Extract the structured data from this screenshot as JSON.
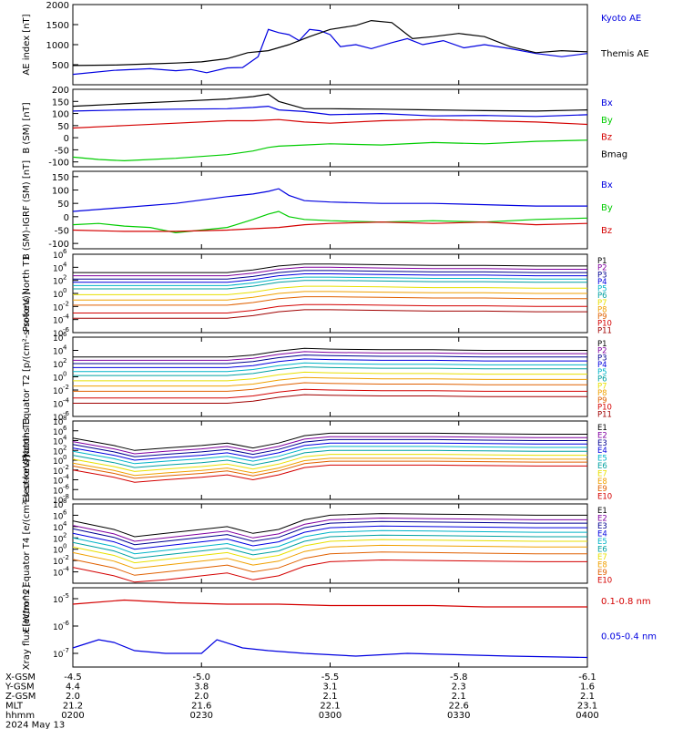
{
  "colors": {
    "black": "#000000",
    "blue": "#0000e0",
    "green": "#00cc00",
    "red": "#d40000",
    "navy": "#000090",
    "purple": "#8000a0",
    "cyan": "#00b4c8",
    "teal": "#00a0a0",
    "ltgreen": "#00d070",
    "yellow": "#e8e000",
    "orange": "#f0a000",
    "darkorange": "#e06000",
    "darkred": "#a00000"
  },
  "chart_data": [
    {
      "type": "line",
      "panel": "ae",
      "ylabel": "AE index [nT]",
      "yticks": [
        "500",
        "1000",
        "1500",
        "2000"
      ],
      "ylim": [
        0,
        2000
      ],
      "series": [
        {
          "name": "Kyoto AE",
          "color": "blue",
          "x": [
            0,
            8,
            15,
            20,
            23,
            26,
            30,
            33,
            36,
            38,
            40,
            42,
            44,
            46,
            48,
            50,
            52,
            55,
            58,
            62,
            65,
            68,
            72,
            76,
            80,
            85,
            90,
            95,
            100
          ],
          "y": [
            260,
            360,
            400,
            350,
            380,
            300,
            420,
            430,
            700,
            1380,
            1300,
            1250,
            1100,
            1380,
            1350,
            1250,
            950,
            1000,
            900,
            1050,
            1150,
            1000,
            1100,
            920,
            1000,
            900,
            780,
            700,
            780
          ]
        },
        {
          "name": "Themis AE",
          "color": "black",
          "x": [
            0,
            8,
            15,
            20,
            25,
            30,
            34,
            38,
            42,
            46,
            50,
            55,
            58,
            62,
            66,
            70,
            75,
            80,
            85,
            90,
            95,
            100
          ],
          "y": [
            480,
            490,
            520,
            540,
            570,
            650,
            800,
            850,
            1000,
            1200,
            1380,
            1480,
            1600,
            1550,
            1150,
            1200,
            1280,
            1200,
            950,
            800,
            850,
            820
          ]
        }
      ]
    },
    {
      "type": "line",
      "panel": "bsm",
      "ylabel": "B (SM) [nT]",
      "yticks": [
        "-100",
        "-50",
        "0",
        "50",
        "100",
        "150",
        "200"
      ],
      "ylim": [
        -120,
        200
      ],
      "series": [
        {
          "name": "Bx",
          "color": "blue",
          "x": [
            0,
            10,
            20,
            30,
            35,
            38,
            40,
            45,
            50,
            60,
            70,
            80,
            90,
            100
          ],
          "y": [
            110,
            115,
            118,
            120,
            125,
            130,
            115,
            108,
            95,
            100,
            90,
            92,
            88,
            95
          ]
        },
        {
          "name": "By",
          "color": "green",
          "x": [
            0,
            5,
            10,
            20,
            30,
            35,
            38,
            40,
            45,
            50,
            60,
            70,
            80,
            90,
            100
          ],
          "y": [
            -80,
            -90,
            -95,
            -85,
            -70,
            -55,
            -40,
            -35,
            -30,
            -25,
            -30,
            -20,
            -25,
            -15,
            -10
          ]
        },
        {
          "name": "Bz",
          "color": "red",
          "x": [
            0,
            10,
            20,
            30,
            35,
            40,
            45,
            50,
            60,
            70,
            80,
            90,
            100
          ],
          "y": [
            40,
            50,
            60,
            70,
            70,
            75,
            65,
            60,
            70,
            75,
            70,
            65,
            55
          ]
        },
        {
          "name": "Bmag",
          "color": "black",
          "x": [
            0,
            10,
            20,
            30,
            35,
            38,
            40,
            45,
            50,
            60,
            70,
            80,
            90,
            100
          ],
          "y": [
            130,
            140,
            150,
            160,
            170,
            180,
            150,
            120,
            120,
            118,
            115,
            112,
            110,
            115
          ]
        }
      ]
    },
    {
      "type": "line",
      "panel": "bigrf",
      "ylabel": "B (SM)-IGRF (SM) [nT]",
      "yticks": [
        "-100",
        "-50",
        "0",
        "50",
        "100",
        "150"
      ],
      "ylim": [
        -120,
        170
      ],
      "series": [
        {
          "name": "Bx",
          "color": "blue",
          "x": [
            0,
            10,
            20,
            30,
            35,
            38,
            40,
            42,
            45,
            50,
            60,
            70,
            80,
            90,
            100
          ],
          "y": [
            20,
            35,
            50,
            75,
            85,
            95,
            105,
            80,
            60,
            55,
            50,
            50,
            45,
            40,
            40
          ]
        },
        {
          "name": "By",
          "color": "green",
          "x": [
            0,
            5,
            10,
            15,
            20,
            25,
            30,
            35,
            38,
            40,
            42,
            45,
            50,
            60,
            70,
            80,
            90,
            100
          ],
          "y": [
            -30,
            -25,
            -35,
            -40,
            -60,
            -50,
            -40,
            -10,
            10,
            20,
            0,
            -10,
            -15,
            -20,
            -15,
            -20,
            -10,
            -5
          ]
        },
        {
          "name": "Bz",
          "color": "red",
          "x": [
            0,
            10,
            20,
            30,
            35,
            40,
            45,
            50,
            60,
            70,
            80,
            90,
            100
          ],
          "y": [
            -50,
            -55,
            -55,
            -50,
            -45,
            -40,
            -30,
            -25,
            -20,
            -25,
            -20,
            -30,
            -25
          ]
        }
      ]
    },
    {
      "type": "line",
      "panel": "pnt1",
      "ylabel": "Protons North T1",
      "log": true,
      "ylim": [
        -6,
        6
      ],
      "yticks_exp": [
        "-6",
        "-4",
        "-2",
        "0",
        "2",
        "4",
        "6"
      ],
      "channels": [
        "P1",
        "P2",
        "P3",
        "P4",
        "P5",
        "P6",
        "P7",
        "P8",
        "P9",
        "P10",
        "P11"
      ],
      "channel_colors": [
        "black",
        "purple",
        "navy",
        "blue",
        "cyan",
        "teal",
        "yellow",
        "orange",
        "darkorange",
        "red",
        "darkred"
      ],
      "base_levels": [
        3.2,
        2.7,
        2.2,
        1.7,
        1.2,
        0.7,
        -0.2,
        -1.0,
        -1.8,
        -3.0,
        -3.8
      ],
      "x": [
        0,
        15,
        30,
        35,
        40,
        45,
        50,
        60,
        70,
        80,
        90,
        100
      ],
      "shape": [
        0,
        0,
        0,
        0.4,
        1.0,
        1.3,
        1.3,
        1.2,
        1.1,
        1.1,
        1.0,
        1.0
      ]
    },
    {
      "type": "line",
      "panel": "peq",
      "ylabel": "Protons Equator T2 [p/(cm²-s-sr-keV)]",
      "log": true,
      "ylim": [
        -6,
        6
      ],
      "yticks_exp": [
        "-6",
        "-4",
        "-2",
        "0",
        "2",
        "4",
        "6"
      ],
      "channels": [
        "P1",
        "P2",
        "P3",
        "P4",
        "P5",
        "P6",
        "P7",
        "P8",
        "P9",
        "P10",
        "P11"
      ],
      "channel_colors": [
        "black",
        "purple",
        "navy",
        "blue",
        "cyan",
        "teal",
        "yellow",
        "orange",
        "darkorange",
        "red",
        "darkred"
      ],
      "base_levels": [
        3.0,
        2.5,
        2.0,
        1.4,
        0.8,
        0.2,
        -0.6,
        -1.4,
        -2.2,
        -3.2,
        -4.0
      ],
      "x": [
        0,
        15,
        30,
        35,
        40,
        45,
        50,
        60,
        70,
        80,
        90,
        100
      ],
      "shape": [
        0,
        0,
        0,
        0.3,
        0.9,
        1.3,
        1.2,
        1.1,
        1.1,
        1.0,
        1.0,
        1.0
      ]
    },
    {
      "type": "line",
      "panel": "ent3",
      "ylabel": "Electrons North T3",
      "log": true,
      "ylim": [
        -8,
        8
      ],
      "yticks_exp": [
        "-8",
        "-6",
        "-4",
        "-2",
        "0",
        "2",
        "4",
        "6",
        "8"
      ],
      "channels": [
        "E1",
        "E2",
        "E3",
        "E4",
        "E5",
        "E6",
        "E7",
        "E8",
        "E9",
        "E10"
      ],
      "channel_colors": [
        "black",
        "purple",
        "navy",
        "blue",
        "cyan",
        "teal",
        "yellow",
        "orange",
        "darkorange",
        "red"
      ],
      "base_levels": [
        4.5,
        3.8,
        3.2,
        2.5,
        1.8,
        1.0,
        0.2,
        -0.6,
        -1.2,
        -2.0
      ],
      "x": [
        0,
        8,
        12,
        18,
        25,
        30,
        35,
        40,
        45,
        50,
        60,
        70,
        80,
        90,
        100
      ],
      "shape": [
        0,
        -1.5,
        -2.5,
        -2,
        -1.5,
        -1,
        -2,
        -1,
        0.5,
        1.0,
        1.0,
        1.0,
        0.9,
        0.8,
        0.8
      ]
    },
    {
      "type": "line",
      "panel": "eeq",
      "ylabel": "Electrons Equator T4 [e/(cm²-s-sr-keV)]",
      "log": true,
      "ylim": [
        -6,
        8
      ],
      "yticks_exp": [
        "-4",
        "-2",
        "0",
        "2",
        "4",
        "6",
        "8"
      ],
      "channels": [
        "E1",
        "E2",
        "E3",
        "E4",
        "E5",
        "E6",
        "E7",
        "E8",
        "E9",
        "E10"
      ],
      "channel_colors": [
        "black",
        "purple",
        "navy",
        "blue",
        "cyan",
        "teal",
        "yellow",
        "orange",
        "darkorange",
        "red"
      ],
      "base_levels": [
        5.0,
        4.2,
        3.6,
        2.8,
        2.0,
        1.2,
        0.4,
        -0.6,
        -1.8,
        -3.2
      ],
      "x": [
        0,
        8,
        12,
        18,
        25,
        30,
        35,
        40,
        45,
        50,
        60,
        70,
        80,
        90,
        100
      ],
      "shape": [
        0,
        -1.5,
        -2.8,
        -2.2,
        -1.5,
        -1,
        -2.2,
        -1.5,
        0.2,
        1.0,
        1.3,
        1.2,
        1.1,
        1.0,
        1.0
      ]
    },
    {
      "type": "line",
      "panel": "xray",
      "ylabel": "Xray flux [W/m^2]",
      "log": true,
      "ylim": [
        -7.5,
        -4.6
      ],
      "yticks_exp": [
        "-7",
        "-6",
        "-5"
      ],
      "series": [
        {
          "name": "0.1-0.8 nm",
          "color": "red",
          "x": [
            0,
            10,
            20,
            30,
            40,
            50,
            60,
            70,
            80,
            90,
            100
          ],
          "y": [
            -5.2,
            -5.05,
            -5.15,
            -5.2,
            -5.2,
            -5.25,
            -5.25,
            -5.25,
            -5.3,
            -5.3,
            -5.3
          ]
        },
        {
          "name": "0.05-0.4 nm",
          "color": "blue",
          "x": [
            0,
            5,
            8,
            12,
            18,
            25,
            28,
            33,
            38,
            45,
            55,
            65,
            75,
            85,
            100
          ],
          "y": [
            -6.8,
            -6.5,
            -6.6,
            -6.9,
            -7.0,
            -7.0,
            -6.5,
            -6.8,
            -6.9,
            -7.0,
            -7.1,
            -7.0,
            -7.05,
            -7.1,
            -7.15
          ]
        }
      ]
    }
  ],
  "xaxis": {
    "rows": [
      {
        "label": "X-GSM",
        "values": [
          "-4.5",
          "-5.0",
          "-5.5",
          "-5.8",
          "-6.1"
        ]
      },
      {
        "label": "Y-GSM",
        "values": [
          "4.4",
          "3.8",
          "3.1",
          "2.3",
          "1.6"
        ]
      },
      {
        "label": "Z-GSM",
        "values": [
          "2.0",
          "2.0",
          "2.1",
          "2.1",
          "2.1"
        ]
      },
      {
        "label": "MLT",
        "values": [
          "21.2",
          "21.6",
          "22.1",
          "22.6",
          "23.1"
        ]
      },
      {
        "label": "hhmm",
        "values": [
          "0200",
          "0230",
          "0300",
          "0330",
          "0400"
        ]
      }
    ],
    "date": "2024 May 13"
  }
}
